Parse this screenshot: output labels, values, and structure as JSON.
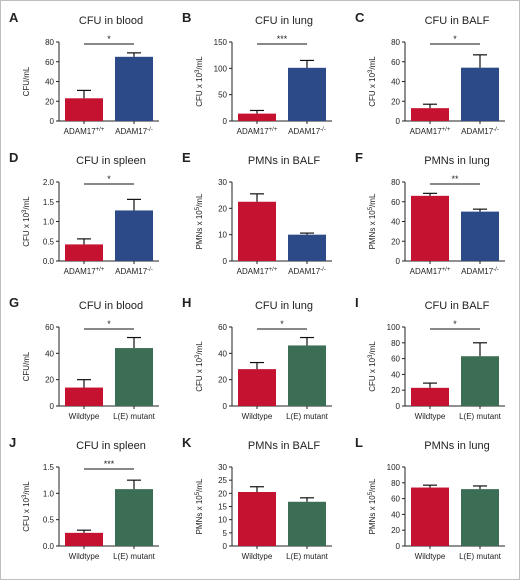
{
  "colors": {
    "red": "#c41230",
    "blue": "#2c4a87",
    "green": "#3b6e55",
    "axis": "#222222"
  },
  "chart_data": [
    {
      "label": "A",
      "type": "bar",
      "title": "CFU in blood",
      "ylabel": "CFU/mL",
      "categories": [
        "ADAM17",
        "ADAM17"
      ],
      "cat_sup": [
        "+/+",
        "-/-"
      ],
      "values": [
        23,
        65
      ],
      "errors": [
        8,
        4
      ],
      "ylim": [
        0,
        80
      ],
      "ticks": [
        "0",
        "20",
        "40",
        "60",
        "80"
      ],
      "colors": [
        "red",
        "blue"
      ],
      "significance": "*"
    },
    {
      "label": "B",
      "type": "bar",
      "title": "CFU in lung",
      "ylabel": "CFU x 10",
      "ylabel_sup": "3",
      "ylabel_tail": "/mL",
      "categories": [
        "ADAM17",
        "ADAM17"
      ],
      "cat_sup": [
        "+/+",
        "-/-"
      ],
      "values": [
        14,
        101
      ],
      "errors": [
        6,
        14
      ],
      "ylim": [
        0,
        150
      ],
      "ticks": [
        "0",
        "50",
        "100",
        "150"
      ],
      "colors": [
        "red",
        "blue"
      ],
      "significance": "***"
    },
    {
      "label": "C",
      "type": "bar",
      "title": "CFU in BALF",
      "ylabel": "CFU x 10",
      "ylabel_sup": "3",
      "ylabel_tail": "/mL",
      "categories": [
        "ADAM17",
        "ADAM17"
      ],
      "cat_sup": [
        "+/+",
        "-/-"
      ],
      "values": [
        13,
        54
      ],
      "errors": [
        4,
        13
      ],
      "ylim": [
        0,
        80
      ],
      "ticks": [
        "0",
        "20",
        "40",
        "60",
        "80"
      ],
      "colors": [
        "red",
        "blue"
      ],
      "significance": "*"
    },
    {
      "label": "D",
      "type": "bar",
      "title": "CFU in spleen",
      "ylabel": "CFU x 10",
      "ylabel_sup": "3",
      "ylabel_tail": "/mL",
      "categories": [
        "ADAM17",
        "ADAM17"
      ],
      "cat_sup": [
        "+/+",
        "-/-"
      ],
      "values": [
        0.42,
        1.28
      ],
      "errors": [
        0.14,
        0.28
      ],
      "ylim": [
        0,
        2.0
      ],
      "ticks": [
        "0.0",
        "0.5",
        "1.0",
        "1.5",
        "2.0"
      ],
      "colors": [
        "red",
        "blue"
      ],
      "significance": "*"
    },
    {
      "label": "E",
      "type": "bar",
      "title": "PMNs in BALF",
      "ylabel": "PMNs x 10",
      "ylabel_sup": "5",
      "ylabel_tail": "/mL",
      "categories": [
        "ADAM17",
        "ADAM17"
      ],
      "cat_sup": [
        "+/+",
        "-/-"
      ],
      "values": [
        22.5,
        10
      ],
      "errors": [
        3,
        0.6
      ],
      "ylim": [
        0,
        30
      ],
      "ticks": [
        "0",
        "10",
        "20",
        "30"
      ],
      "colors": [
        "red",
        "blue"
      ],
      "significance": ""
    },
    {
      "label": "F",
      "type": "bar",
      "title": "PMNs in lung",
      "ylabel": "PMNs x 10",
      "ylabel_sup": "5",
      "ylabel_tail": "/mL",
      "categories": [
        "ADAM17",
        "ADAM17"
      ],
      "cat_sup": [
        "+/+",
        "-/-"
      ],
      "values": [
        66,
        50
      ],
      "errors": [
        2.5,
        2.5
      ],
      "ylim": [
        0,
        80
      ],
      "ticks": [
        "0",
        "20",
        "40",
        "60",
        "80"
      ],
      "colors": [
        "red",
        "blue"
      ],
      "significance": "**"
    },
    {
      "label": "G",
      "type": "bar",
      "title": "CFU in blood",
      "ylabel": "CFU/mL",
      "categories": [
        "Wildtype",
        "L(E) mutant"
      ],
      "cat_sup": [
        "",
        ""
      ],
      "values": [
        14,
        44
      ],
      "errors": [
        6,
        8
      ],
      "ylim": [
        0,
        60
      ],
      "ticks": [
        "0",
        "20",
        "40",
        "60"
      ],
      "colors": [
        "red",
        "green"
      ],
      "significance": "*"
    },
    {
      "label": "H",
      "type": "bar",
      "title": "CFU in lung",
      "ylabel": "CFU x 10",
      "ylabel_sup": "3",
      "ylabel_tail": "/mL",
      "categories": [
        "Wildtype",
        "L(E) mutant"
      ],
      "cat_sup": [
        "",
        ""
      ],
      "values": [
        28,
        46
      ],
      "errors": [
        5,
        6
      ],
      "ylim": [
        0,
        60
      ],
      "ticks": [
        "0",
        "20",
        "40",
        "60"
      ],
      "colors": [
        "red",
        "green"
      ],
      "significance": "*"
    },
    {
      "label": "I",
      "type": "bar",
      "title": "CFU in BALF",
      "ylabel": "CFU x 10",
      "ylabel_sup": "3",
      "ylabel_tail": "/mL",
      "categories": [
        "Wildtype",
        "L(E) mutant"
      ],
      "cat_sup": [
        "",
        ""
      ],
      "values": [
        23,
        63
      ],
      "errors": [
        6,
        17
      ],
      "ylim": [
        0,
        100
      ],
      "ticks": [
        "0",
        "20",
        "40",
        "60",
        "80",
        "100"
      ],
      "colors": [
        "red",
        "green"
      ],
      "significance": "*"
    },
    {
      "label": "J",
      "type": "bar",
      "title": "CFU in spleen",
      "ylabel": "CFU x 10",
      "ylabel_sup": "3",
      "ylabel_tail": "/mL",
      "categories": [
        "Wildtype",
        "L(E) mutant"
      ],
      "cat_sup": [
        "",
        ""
      ],
      "values": [
        0.25,
        1.08
      ],
      "errors": [
        0.05,
        0.17
      ],
      "ylim": [
        0,
        1.5
      ],
      "ticks": [
        "0.0",
        "0.5",
        "1.0",
        "1.5"
      ],
      "colors": [
        "red",
        "green"
      ],
      "significance": "***"
    },
    {
      "label": "K",
      "type": "bar",
      "title": "PMNs in BALF",
      "ylabel": "PMNs x 10",
      "ylabel_sup": "5",
      "ylabel_tail": "/mL",
      "categories": [
        "Wildtype",
        "L(E) mutant"
      ],
      "cat_sup": [
        "",
        ""
      ],
      "values": [
        20.5,
        16.8
      ],
      "errors": [
        2,
        1.5
      ],
      "ylim": [
        0,
        30
      ],
      "ticks": [
        "0",
        "5",
        "10",
        "15",
        "20",
        "25",
        "30"
      ],
      "colors": [
        "red",
        "green"
      ],
      "significance": ""
    },
    {
      "label": "L",
      "type": "bar",
      "title": "PMNs in lung",
      "ylabel": "PMNs x 10",
      "ylabel_sup": "5",
      "ylabel_tail": "/mL",
      "categories": [
        "Wildtype",
        "L(E) mutant"
      ],
      "cat_sup": [
        "",
        ""
      ],
      "values": [
        74,
        72
      ],
      "errors": [
        3,
        4
      ],
      "ylim": [
        0,
        100
      ],
      "ticks": [
        "0",
        "20",
        "40",
        "60",
        "80",
        "100"
      ],
      "colors": [
        "red",
        "green"
      ],
      "significance": ""
    }
  ]
}
